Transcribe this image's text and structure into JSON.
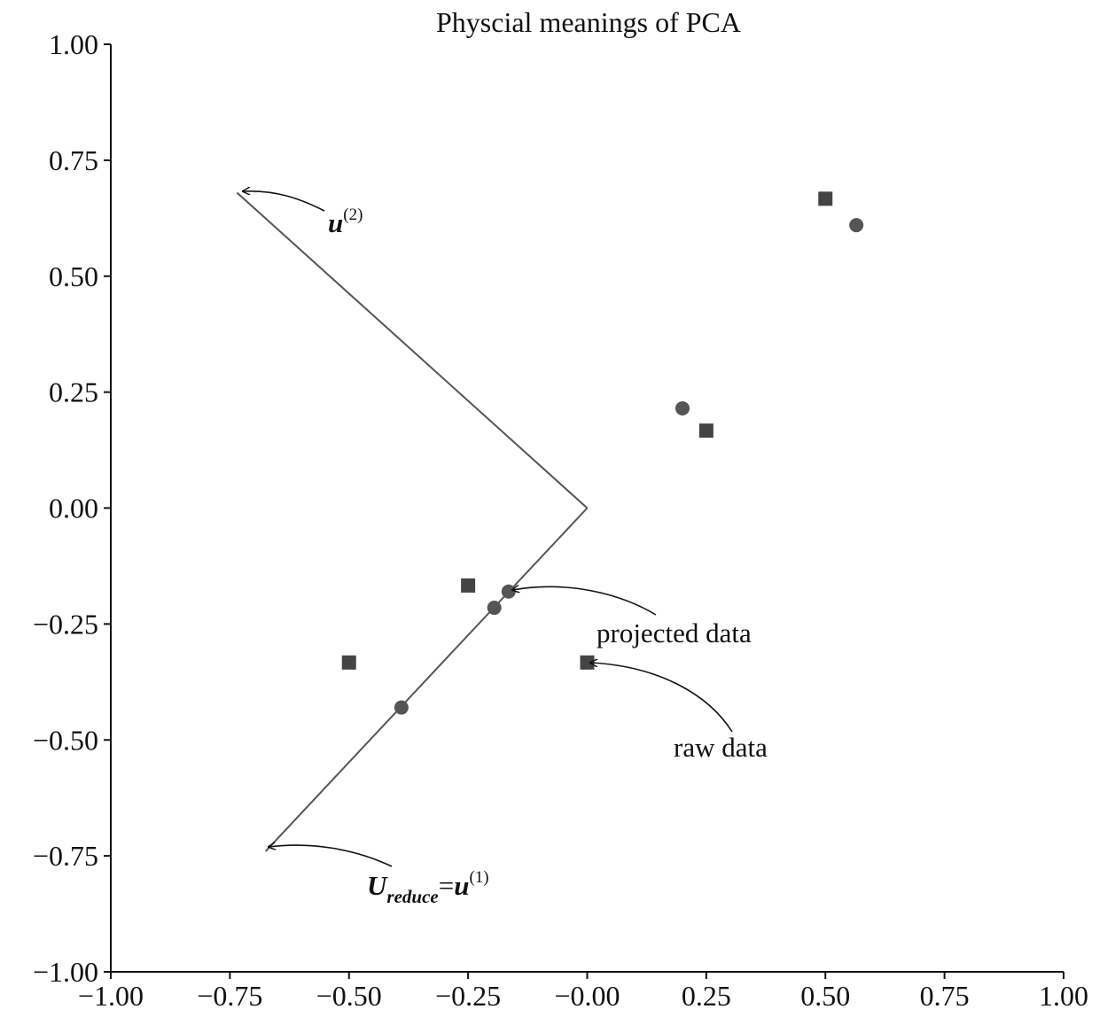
{
  "chart_data": {
    "type": "scatter",
    "title": "Physcial meanings of PCA",
    "xlabel": "",
    "ylabel": "",
    "xlim": [
      -1.0,
      1.0
    ],
    "ylim": [
      -1.0,
      1.0
    ],
    "grid": false,
    "x_ticks": [
      "−1.00",
      "−0.75",
      "−0.50",
      "−0.25",
      "−0.00",
      "0.25",
      "0.50",
      "0.75",
      "1.00"
    ],
    "y_ticks": [
      "1.00",
      "0.75",
      "0.50",
      "0.25",
      "0.00",
      "−0.25",
      "−0.50",
      "−0.75",
      "−1.00"
    ],
    "x_tick_values": [
      -1.0,
      -0.75,
      -0.5,
      -0.25,
      0.0,
      0.25,
      0.5,
      0.75,
      1.0
    ],
    "y_tick_values": [
      1.0,
      0.75,
      0.5,
      0.25,
      0.0,
      -0.25,
      -0.5,
      -0.75,
      -1.0
    ],
    "series": [
      {
        "marker": "square",
        "color": "#444444",
        "points": [
          {
            "x": 0.5,
            "y": 0.667
          },
          {
            "x": 0.25,
            "y": 0.167
          },
          {
            "x": -0.25,
            "y": -0.167
          },
          {
            "x": -0.5,
            "y": -0.333
          },
          {
            "x": 0.0,
            "y": -0.333
          }
        ]
      },
      {
        "marker": "circle",
        "color": "#555555",
        "points": [
          {
            "x": 0.565,
            "y": 0.61
          },
          {
            "x": 0.2,
            "y": 0.215
          },
          {
            "x": -0.165,
            "y": -0.18
          },
          {
            "x": -0.195,
            "y": -0.215
          },
          {
            "x": -0.39,
            "y": -0.43
          }
        ]
      }
    ],
    "vectors": [
      {
        "name": "u2",
        "from": [
          0,
          0
        ],
        "to": [
          -0.735,
          0.68
        ]
      },
      {
        "name": "u1",
        "from": [
          0,
          0
        ],
        "to": [
          -0.675,
          -0.74
        ]
      }
    ],
    "annotations": [
      {
        "id": "u2",
        "base": "u",
        "sup": "(2)"
      },
      {
        "id": "ureduce",
        "base": "U",
        "sub": "reduce",
        "eq": "=",
        "base2": "u",
        "sup": "(1)"
      },
      {
        "id": "projected",
        "text": "projected data"
      },
      {
        "id": "raw",
        "text": "raw data"
      }
    ]
  }
}
